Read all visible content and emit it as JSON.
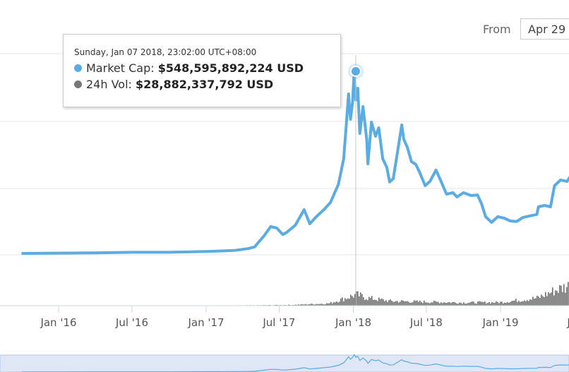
{
  "controls": {
    "from_label": "From",
    "from_value": "Apr 29"
  },
  "tooltip": {
    "date": "Sunday, Jan 07 2018, 23:02:00 UTC+08:00",
    "rows": [
      {
        "name": "Market Cap:",
        "value": "$548,595,892,224 USD",
        "color": "#5aace3"
      },
      {
        "name": "24h Vol:",
        "value": "$28,882,337,792 USD",
        "color": "#777777"
      }
    ]
  },
  "chart_data": {
    "type": "line",
    "title": "",
    "xlabel": "",
    "ylabel": "",
    "x_ticks": [
      "Jan '16",
      "Jul '16",
      "Jan '17",
      "Jul '17",
      "Jan '18",
      "Jul '18",
      "Jan '19",
      "Jul"
    ],
    "x_range": [
      "2015-10-01",
      "2019-07-10"
    ],
    "y_range": [
      0,
      660
    ],
    "y_unit": "billion USD",
    "grid": true,
    "legend": "none",
    "series": [
      {
        "color": "#5aace3",
        "points": [
          [
            "2015-10-01",
            5
          ],
          [
            "2016-01-01",
            6
          ],
          [
            "2016-04-01",
            7
          ],
          [
            "2016-07-01",
            9
          ],
          [
            "2016-10-01",
            9
          ],
          [
            "2017-01-01",
            12
          ],
          [
            "2017-02-15",
            14
          ],
          [
            "2017-03-15",
            16
          ],
          [
            "2017-04-15",
            22
          ],
          [
            "2017-05-01",
            28
          ],
          [
            "2017-05-25",
            68
          ],
          [
            "2017-06-10",
            100
          ],
          [
            "2017-06-25",
            95
          ],
          [
            "2017-07-10",
            72
          ],
          [
            "2017-07-20",
            80
          ],
          [
            "2017-08-10",
            105
          ],
          [
            "2017-09-01",
            160
          ],
          [
            "2017-09-15",
            110
          ],
          [
            "2017-10-01",
            135
          ],
          [
            "2017-10-20",
            160
          ],
          [
            "2017-11-05",
            185
          ],
          [
            "2017-11-25",
            250
          ],
          [
            "2017-12-08",
            340
          ],
          [
            "2017-12-15",
            470
          ],
          [
            "2017-12-20",
            570
          ],
          [
            "2017-12-25",
            480
          ],
          [
            "2017-12-30",
            540
          ],
          [
            "2018-01-03",
            650
          ],
          [
            "2018-01-07",
            548
          ],
          [
            "2018-01-12",
            590
          ],
          [
            "2018-01-17",
            430
          ],
          [
            "2018-01-25",
            525
          ],
          [
            "2018-02-03",
            410
          ],
          [
            "2018-02-06",
            322
          ],
          [
            "2018-02-15",
            470
          ],
          [
            "2018-02-25",
            420
          ],
          [
            "2018-03-05",
            450
          ],
          [
            "2018-03-15",
            340
          ],
          [
            "2018-03-25",
            310
          ],
          [
            "2018-04-01",
            258
          ],
          [
            "2018-04-10",
            270
          ],
          [
            "2018-04-20",
            360
          ],
          [
            "2018-05-01",
            460
          ],
          [
            "2018-05-06",
            410
          ],
          [
            "2018-05-15",
            380
          ],
          [
            "2018-05-25",
            330
          ],
          [
            "2018-06-05",
            320
          ],
          [
            "2018-06-15",
            290
          ],
          [
            "2018-06-28",
            245
          ],
          [
            "2018-07-10",
            260
          ],
          [
            "2018-07-25",
            300
          ],
          [
            "2018-08-05",
            265
          ],
          [
            "2018-08-20",
            215
          ],
          [
            "2018-09-05",
            220
          ],
          [
            "2018-09-15",
            205
          ],
          [
            "2018-10-01",
            220
          ],
          [
            "2018-10-20",
            210
          ],
          [
            "2018-11-05",
            212
          ],
          [
            "2018-11-15",
            180
          ],
          [
            "2018-11-25",
            135
          ],
          [
            "2018-12-10",
            115
          ],
          [
            "2018-12-25",
            135
          ],
          [
            "2019-01-10",
            130
          ],
          [
            "2019-01-25",
            120
          ],
          [
            "2019-02-10",
            118
          ],
          [
            "2019-02-25",
            132
          ],
          [
            "2019-03-15",
            138
          ],
          [
            "2019-04-01",
            143
          ],
          [
            "2019-04-05",
            170
          ],
          [
            "2019-04-20",
            175
          ],
          [
            "2019-05-05",
            170
          ],
          [
            "2019-05-15",
            245
          ],
          [
            "2019-05-30",
            265
          ],
          [
            "2019-06-15",
            260
          ],
          [
            "2019-07-10",
            315
          ]
        ]
      },
      {
        "color": "#777777",
        "points": [
          [
            "2015-10-01",
            0.1
          ],
          [
            "2016-06-01",
            0.2
          ],
          [
            "2017-01-01",
            0.4
          ],
          [
            "2017-05-01",
            1
          ],
          [
            "2017-08-01",
            2
          ],
          [
            "2017-11-01",
            6
          ],
          [
            "2017-12-15",
            21
          ],
          [
            "2018-01-07",
            29
          ],
          [
            "2018-02-05",
            20
          ],
          [
            "2018-04-01",
            12
          ],
          [
            "2018-07-01",
            10
          ],
          [
            "2018-10-01",
            8
          ],
          [
            "2019-01-01",
            9
          ],
          [
            "2019-04-01",
            20
          ],
          [
            "2019-05-15",
            40
          ],
          [
            "2019-06-25",
            55
          ],
          [
            "2019-07-10",
            45
          ]
        ]
      }
    ]
  }
}
